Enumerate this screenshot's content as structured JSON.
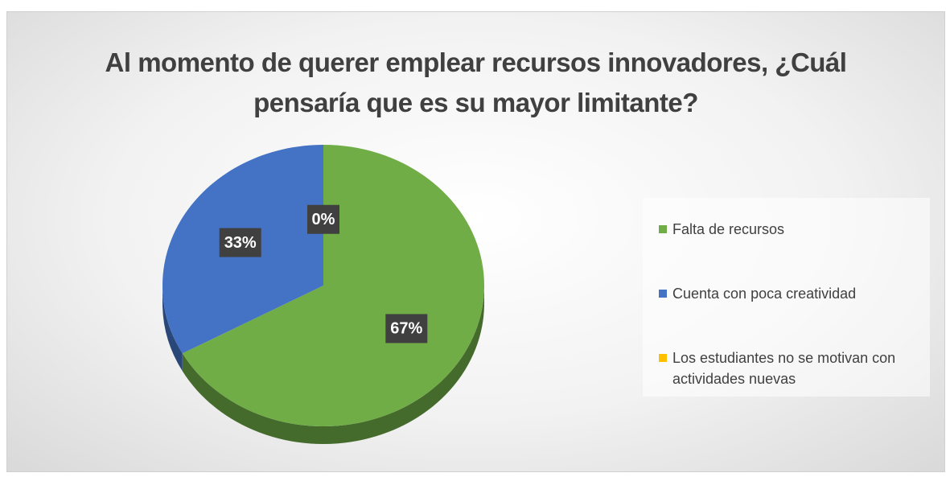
{
  "chart_data": {
    "type": "pie",
    "title": "Al momento de querer emplear recursos innovadores, ¿Cuál pensaría que es su mayor limitante?",
    "categories": [
      "Falta de recursos",
      "Cuenta con poca creatividad",
      "Los estudiantes no se motivan con actividades nuevas"
    ],
    "values": [
      67,
      33,
      0
    ],
    "value_labels": [
      "67%",
      "33%",
      "0%"
    ],
    "colors": [
      "#70ad47",
      "#4472c4",
      "#ffc000"
    ],
    "legend": "right"
  }
}
